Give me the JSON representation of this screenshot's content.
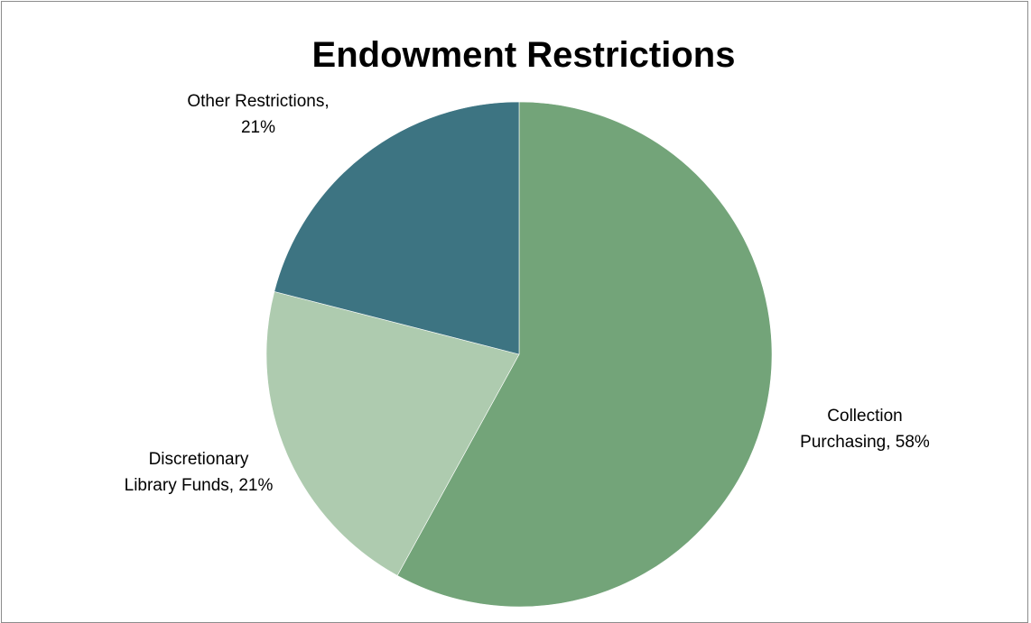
{
  "chart_data": {
    "type": "pie",
    "title": "Endowment Restrictions",
    "slices": [
      {
        "name": "Collection Purchasing",
        "value": 58,
        "label_lines": [
          "Collection",
          "Purchasing, 58%"
        ],
        "color": "#73a479"
      },
      {
        "name": "Discretionary Library Funds",
        "value": 21,
        "label_lines": [
          "Discretionary",
          "Library Funds, 21%"
        ],
        "color": "#aecbaf"
      },
      {
        "name": "Other Restrictions",
        "value": 21,
        "label_lines": [
          "Other Restrictions,",
          "21%"
        ],
        "color": "#3d7482"
      }
    ],
    "start_angle": "12 o'clock",
    "direction": "clockwise",
    "legend": "none",
    "data_labels": "outside"
  }
}
